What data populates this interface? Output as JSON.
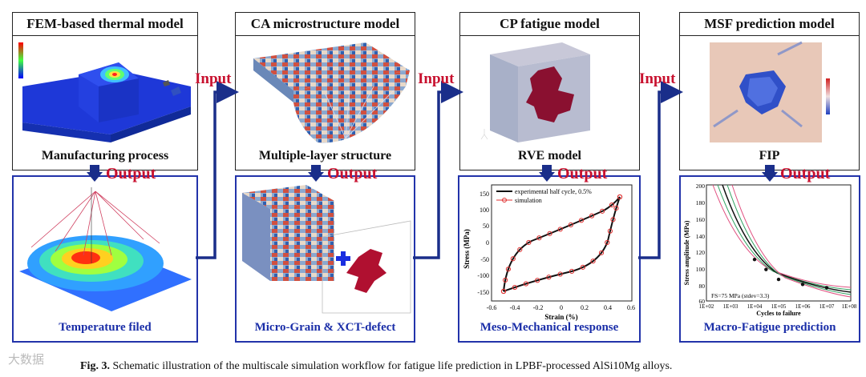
{
  "panels": [
    {
      "title": "FEM-based thermal model",
      "top_caption": "Manufacturing process",
      "bottom_caption": "Temperature filed"
    },
    {
      "title": "CA microstructure model",
      "top_caption": "Multiple-layer structure",
      "bottom_caption": "Micro-Grain & XCT-defect"
    },
    {
      "title": "CP fatigue model",
      "top_caption": "RVE model",
      "bottom_caption": "Meso-Mechanical response"
    },
    {
      "title": "MSF prediction model",
      "top_caption": "FIP",
      "bottom_caption": "Macro-Fatigue prediction"
    }
  ],
  "labels": {
    "input": "Input",
    "output": "Output"
  },
  "caption": {
    "fig": "Fig. 3.",
    "text": "Schematic illustration of the multiscale simulation workflow for fatigue life prediction in LPBF-processed AlSi10Mg alloys."
  },
  "watermark": "大数据",
  "stress_chart": {
    "ylabel": "Stress (MPa)",
    "xlabel": "Strain (%)",
    "legend": [
      "experimental half cycle, 0.5%",
      "simulation"
    ],
    "xticks": [
      "-0.6",
      "-0.4",
      "-0.2",
      "0",
      "0.2",
      "0.4",
      "0.6"
    ],
    "yticks": [
      "150",
      "100",
      "50",
      "0",
      "-50",
      "-100",
      "-150"
    ]
  },
  "sn_chart": {
    "ylabel": "Stress amplitude (MPa)",
    "xlabel": "Cycles to failure",
    "annotation": "FS=75 MPa (stdev=3.3)",
    "xticks": [
      "1E+02",
      "1E+03",
      "1E+04",
      "1E+05",
      "1E+06",
      "1E+07",
      "1E+08"
    ],
    "yticks": [
      "200",
      "180",
      "160",
      "140",
      "120",
      "100",
      "80",
      "60"
    ]
  },
  "chart_data": [
    {
      "type": "line",
      "xlabel": "Strain (%)",
      "ylabel": "Stress (MPa)",
      "xlim": [
        -0.6,
        0.6
      ],
      "ylim": [
        -175,
        175
      ],
      "series": [
        {
          "name": "experimental half cycle, 0.5%",
          "x": [
            -0.5,
            -0.45,
            -0.35,
            -0.2,
            0,
            0.2,
            0.35,
            0.45,
            0.5
          ],
          "y": [
            -145,
            -120,
            -80,
            -50,
            -20,
            20,
            60,
            110,
            145
          ]
        },
        {
          "name": "simulation",
          "x": [
            -0.5,
            -0.4,
            -0.2,
            0,
            0.2,
            0.4,
            0.5
          ],
          "y": [
            -145,
            -135,
            -125,
            -110,
            -90,
            -40,
            145
          ]
        }
      ]
    },
    {
      "type": "scatter",
      "xlabel": "Cycles to failure",
      "ylabel": "Stress amplitude (MPa)",
      "ylim": [
        60,
        200
      ],
      "xlim": [
        "1E+02",
        "1E+08"
      ],
      "series": [
        {
          "name": "",
          "x": [
            10000,
            30000,
            100000,
            1000000,
            10000000
          ],
          "y": [
            110,
            98,
            86,
            80,
            76
          ]
        }
      ]
    }
  ]
}
